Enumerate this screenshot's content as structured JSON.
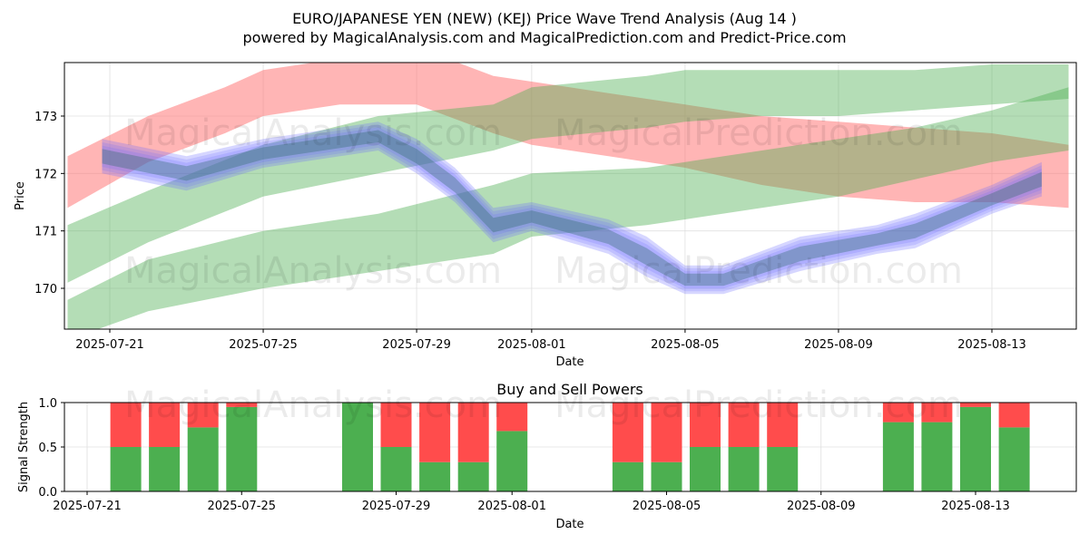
{
  "title_line1": "EURO/JAPANESE YEN (NEW) (KEJ) Price Wave Trend Analysis (Aug 14 )",
  "title_line2": "powered by MagicalAnalysis.com and MagicalPrediction.com and Predict-Price.com",
  "watermarks": [
    "MagicalAnalysis.com",
    "MagicalPrediction.com"
  ],
  "colors": {
    "red_band": "#ff6b6b",
    "green_band": "#4caf50",
    "blue_band": "#6b6bff",
    "buy_bar": "#4caf50",
    "sell_bar": "#ff4c4c",
    "grid": "#e0e0e0"
  },
  "chart_data": [
    {
      "type": "area",
      "title": "",
      "xlabel": "Date",
      "ylabel": "Price",
      "x_range": [
        "2025-07-20",
        "2025-08-15"
      ],
      "ylim": [
        169.3,
        173.9
      ],
      "yticks": [
        170,
        171,
        172,
        173
      ],
      "xticks": [
        "2025-07-21",
        "2025-07-25",
        "2025-07-29",
        "2025-08-01",
        "2025-08-05",
        "2025-08-09",
        "2025-08-13"
      ],
      "grid": true,
      "bands": [
        {
          "name": "red-band",
          "color": "red",
          "dates": [
            "2025-07-19.9",
            "2025-07-22",
            "2025-07-24",
            "2025-07-25",
            "2025-07-27",
            "2025-07-29",
            "2025-07-31",
            "2025-08-01",
            "2025-08-03",
            "2025-08-05",
            "2025-08-07",
            "2025-08-09",
            "2025-08-11",
            "2025-08-13",
            "2025-08-15"
          ],
          "upper": [
            172.3,
            173.0,
            173.5,
            173.8,
            174.0,
            174.2,
            173.7,
            173.6,
            173.4,
            173.2,
            173.0,
            172.9,
            172.8,
            172.7,
            172.5
          ],
          "lower": [
            171.4,
            172.2,
            172.7,
            173.0,
            173.2,
            173.2,
            172.7,
            172.5,
            172.3,
            172.1,
            171.8,
            171.6,
            171.5,
            171.5,
            171.4
          ]
        },
        {
          "name": "green-band-upper",
          "color": "green",
          "dates": [
            "2025-07-19.9",
            "2025-07-22",
            "2025-07-25",
            "2025-07-28",
            "2025-07-31",
            "2025-08-01",
            "2025-08-04",
            "2025-08-05",
            "2025-08-07",
            "2025-08-09",
            "2025-08-11",
            "2025-08-13",
            "2025-08-15"
          ],
          "upper": [
            171.1,
            171.7,
            172.5,
            173.0,
            173.2,
            173.5,
            173.7,
            173.8,
            173.8,
            173.8,
            173.8,
            173.9,
            173.9
          ],
          "lower": [
            170.1,
            170.8,
            171.6,
            172.0,
            172.4,
            172.6,
            172.8,
            172.9,
            173.0,
            173.0,
            173.1,
            173.2,
            173.3
          ]
        },
        {
          "name": "green-band-lower",
          "color": "green",
          "dates": [
            "2025-07-19.9",
            "2025-07-22",
            "2025-07-25",
            "2025-07-28",
            "2025-07-31",
            "2025-08-01",
            "2025-08-04",
            "2025-08-05",
            "2025-08-07",
            "2025-08-09",
            "2025-08-11",
            "2025-08-13",
            "2025-08-15"
          ],
          "upper": [
            169.8,
            170.5,
            171.0,
            171.3,
            171.8,
            172.0,
            172.1,
            172.2,
            172.4,
            172.6,
            172.8,
            173.1,
            173.5
          ],
          "lower": [
            169.1,
            169.6,
            170.0,
            170.3,
            170.6,
            170.9,
            171.1,
            171.2,
            171.4,
            171.6,
            171.9,
            172.2,
            172.4
          ]
        },
        {
          "name": "blue-band",
          "color": "blue",
          "dates": [
            "2025-07-20.8",
            "2025-07-23",
            "2025-07-25",
            "2025-07-27",
            "2025-07-28",
            "2025-07-29",
            "2025-07-30",
            "2025-07-31",
            "2025-08-01",
            "2025-08-03",
            "2025-08-04",
            "2025-08-05",
            "2025-08-06",
            "2025-08-08",
            "2025-08-10",
            "2025-08-11",
            "2025-08-13",
            "2025-08-14.3"
          ],
          "upper": [
            172.6,
            172.3,
            172.6,
            172.8,
            172.9,
            172.6,
            172.1,
            171.4,
            171.5,
            171.2,
            170.9,
            170.4,
            170.4,
            170.9,
            171.1,
            171.3,
            171.8,
            172.2
          ],
          "lower": [
            172.0,
            171.7,
            172.1,
            172.3,
            172.4,
            172.0,
            171.5,
            170.8,
            171.0,
            170.6,
            170.2,
            169.9,
            169.9,
            170.3,
            170.6,
            170.7,
            171.3,
            171.6
          ]
        }
      ]
    },
    {
      "type": "bar",
      "title": "Buy and Sell Powers",
      "xlabel": "Date",
      "ylabel": "Signal Strength",
      "ylim": [
        0,
        1.0
      ],
      "yticks": [
        "0.0",
        "0.5",
        "1.0"
      ],
      "xticks": [
        "2025-07-21",
        "2025-07-25",
        "2025-07-29",
        "2025-08-01",
        "2025-08-05",
        "2025-08-09",
        "2025-08-13"
      ],
      "categories": [
        "2025-07-22",
        "2025-07-23",
        "2025-07-24",
        "2025-07-25",
        "2025-07-28",
        "2025-07-29",
        "2025-07-30",
        "2025-07-31",
        "2025-08-01",
        "2025-08-04",
        "2025-08-05",
        "2025-08-06",
        "2025-08-07",
        "2025-08-08",
        "2025-08-11",
        "2025-08-12",
        "2025-08-13",
        "2025-08-14"
      ],
      "series": [
        {
          "name": "Buy",
          "values": [
            0.5,
            0.5,
            0.72,
            0.95,
            1.0,
            0.5,
            0.33,
            0.33,
            0.68,
            0.33,
            0.33,
            0.5,
            0.5,
            0.5,
            0.78,
            0.78,
            0.95,
            0.72
          ]
        },
        {
          "name": "Sell",
          "values": [
            0.5,
            0.5,
            0.28,
            0.05,
            0.0,
            0.5,
            0.67,
            0.67,
            0.32,
            0.67,
            0.67,
            0.5,
            0.5,
            0.5,
            0.22,
            0.22,
            0.05,
            0.28
          ]
        }
      ]
    }
  ]
}
